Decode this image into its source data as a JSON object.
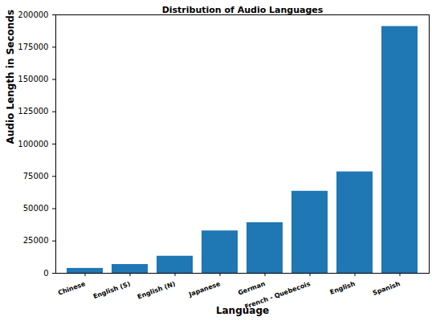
{
  "chart_data": {
    "type": "bar",
    "title": "Distribution of Audio Languages",
    "x_label": "Language",
    "y_label": "Audio Length in Seconds",
    "categories": [
      "Chinese",
      "English (S)",
      "English (N)",
      "Japanese",
      "German",
      "French - Quebecois",
      "English",
      "Spanish"
    ],
    "values": [
      3800,
      6800,
      13200,
      32800,
      39200,
      63500,
      78500,
      191000
    ],
    "color": "#1f77b4",
    "ylim": [
      0,
      200000
    ],
    "yticks": [
      0,
      25000,
      50000,
      75000,
      100000,
      125000,
      150000,
      175000,
      200000
    ],
    "grid": false
  }
}
